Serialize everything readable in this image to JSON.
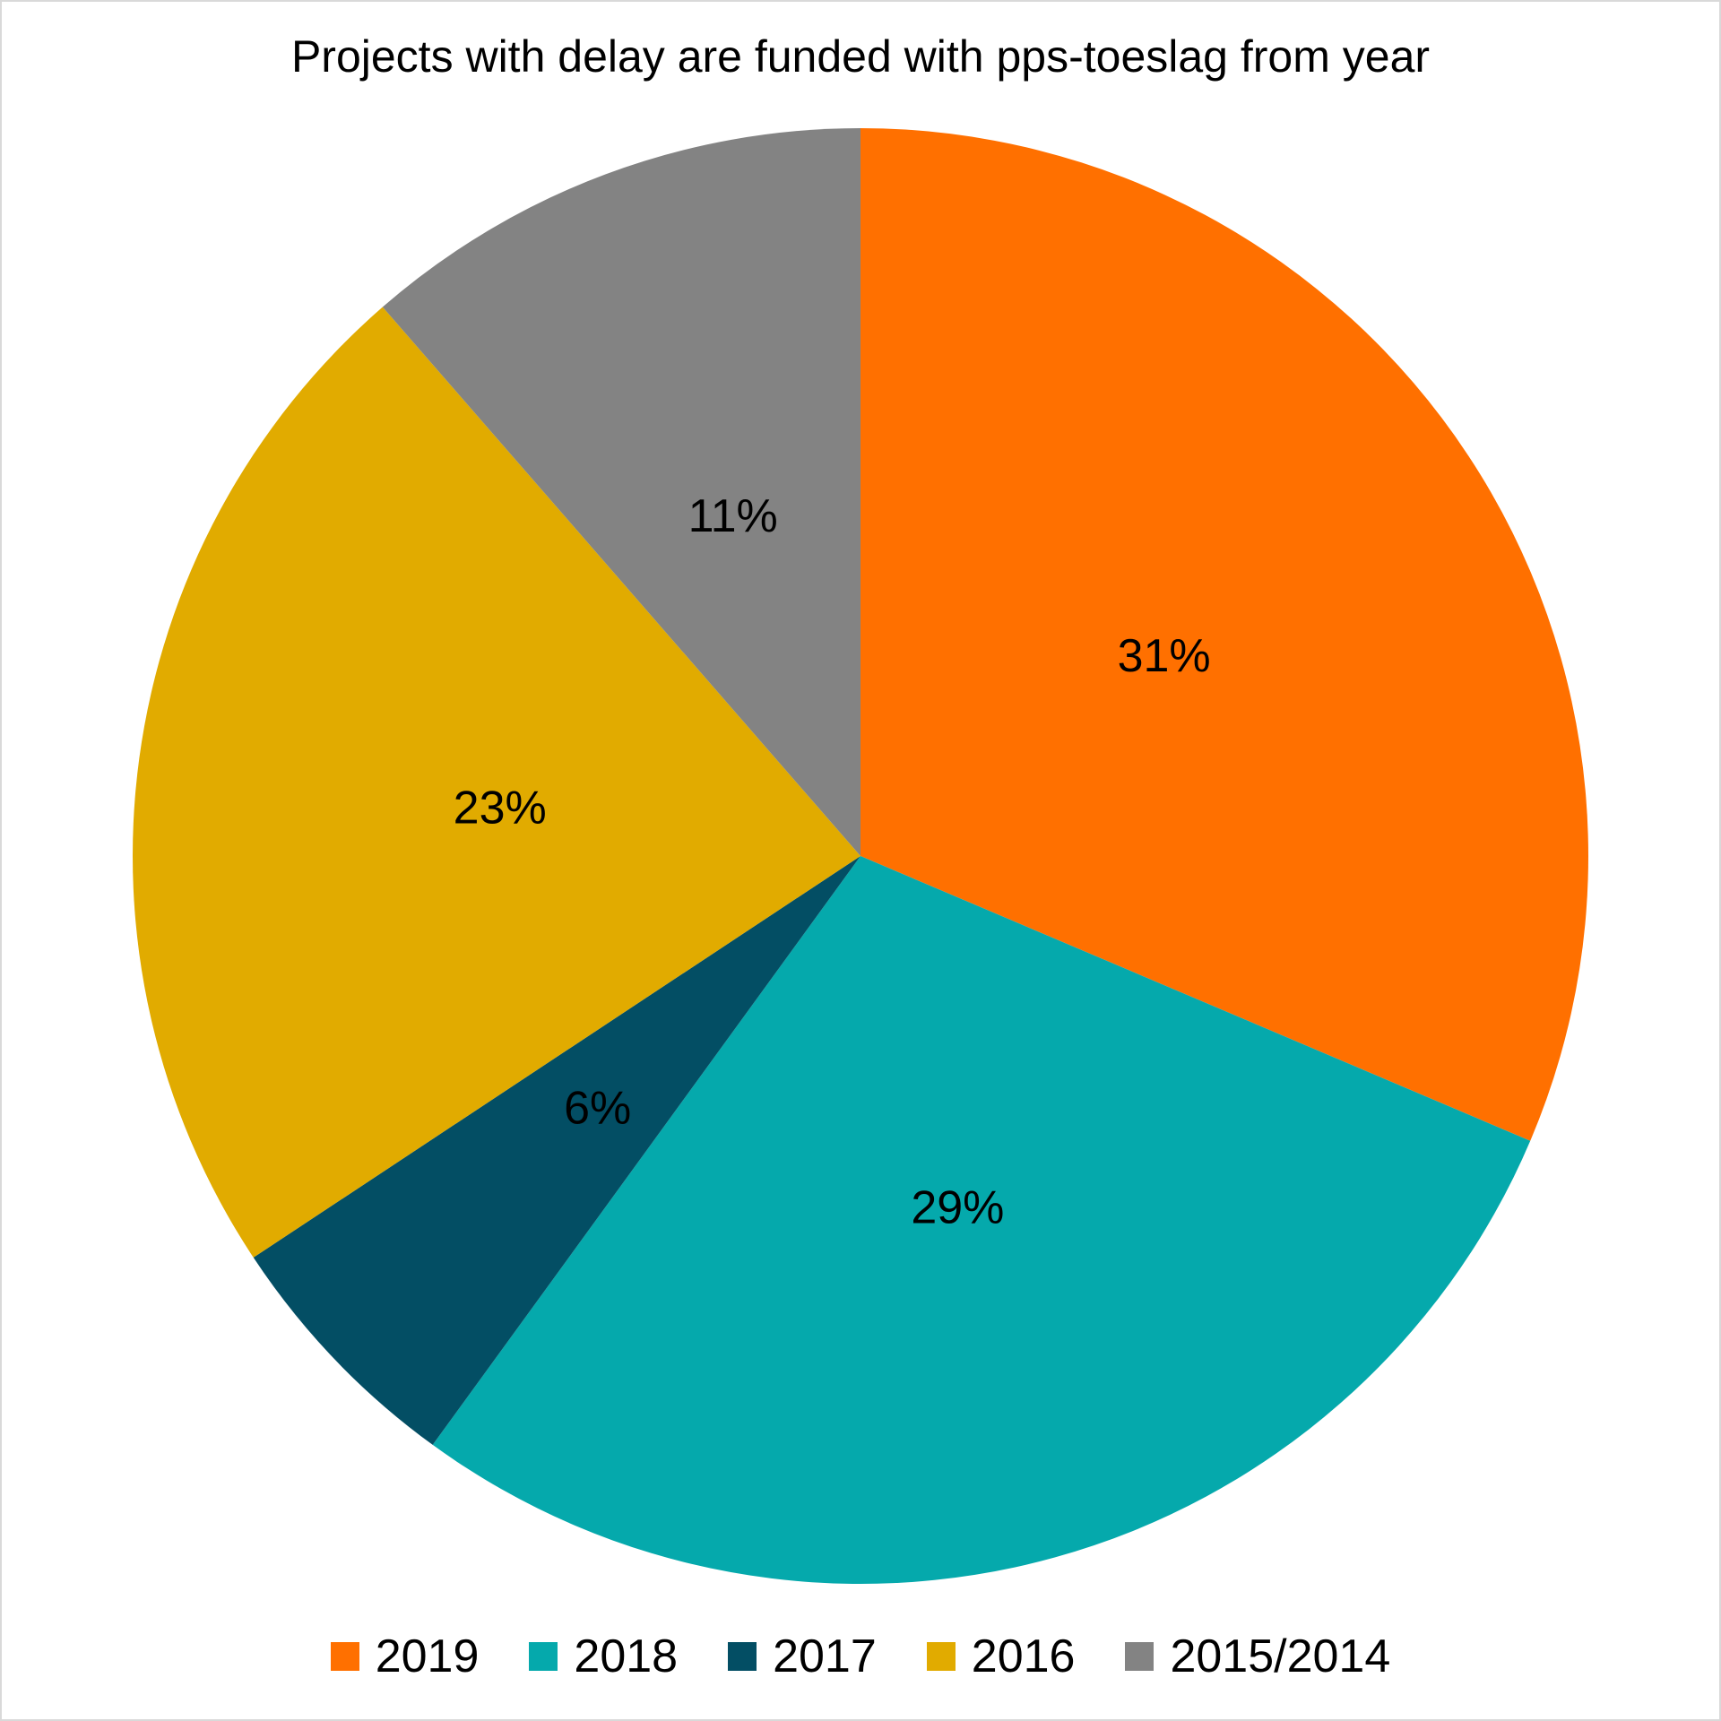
{
  "chart_data": {
    "type": "pie",
    "title": "Projects with delay are funded with pps-toeslag from year",
    "slices": [
      {
        "name": "2019",
        "value": 31.4,
        "label": "31%",
        "color": "#FF7000"
      },
      {
        "name": "2018",
        "value": 28.6,
        "label": "29%",
        "color": "#05A9AC"
      },
      {
        "name": "2017",
        "value": 5.7,
        "label": "6%",
        "color": "#034E64"
      },
      {
        "name": "2016",
        "value": 22.9,
        "label": "23%",
        "color": "#E1AB00"
      },
      {
        "name": "2015/2014",
        "value": 11.4,
        "label": "11%",
        "color": "#838383"
      }
    ],
    "legend_position": "bottom"
  }
}
